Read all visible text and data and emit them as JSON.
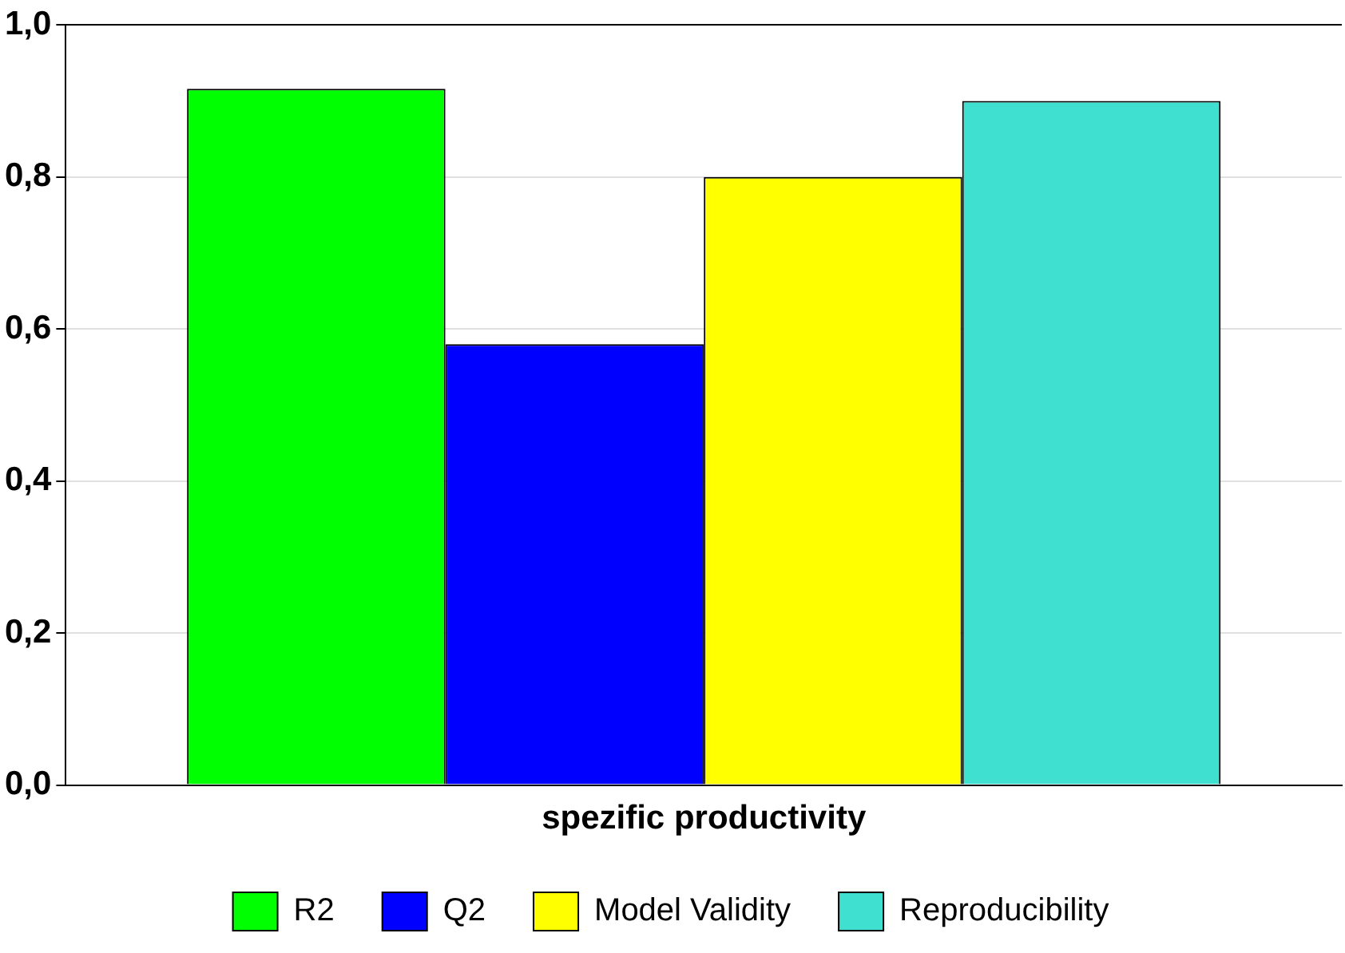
{
  "chart_data": {
    "type": "bar",
    "categories": [
      "spezific productivity"
    ],
    "series": [
      {
        "name": "R2",
        "color": "#00ff00",
        "values": [
          0.916
        ]
      },
      {
        "name": "Q2",
        "color": "#0000ff",
        "values": [
          0.58
        ]
      },
      {
        "name": "Model Validity",
        "color": "#ffff00",
        "values": [
          0.8
        ]
      },
      {
        "name": "Reproducibility",
        "color": "#40e0d0",
        "values": [
          0.9
        ]
      }
    ],
    "ylim": [
      0,
      1
    ],
    "yticks": [
      {
        "value": 0,
        "label": "0,0"
      },
      {
        "value": 0.2,
        "label": "0,2"
      },
      {
        "value": 0.4,
        "label": "0,4"
      },
      {
        "value": 0.6,
        "label": "0,6"
      },
      {
        "value": 0.8,
        "label": "0,8"
      },
      {
        "value": 1,
        "label": "1,0"
      }
    ],
    "grid": "y",
    "legend": "bottom"
  }
}
